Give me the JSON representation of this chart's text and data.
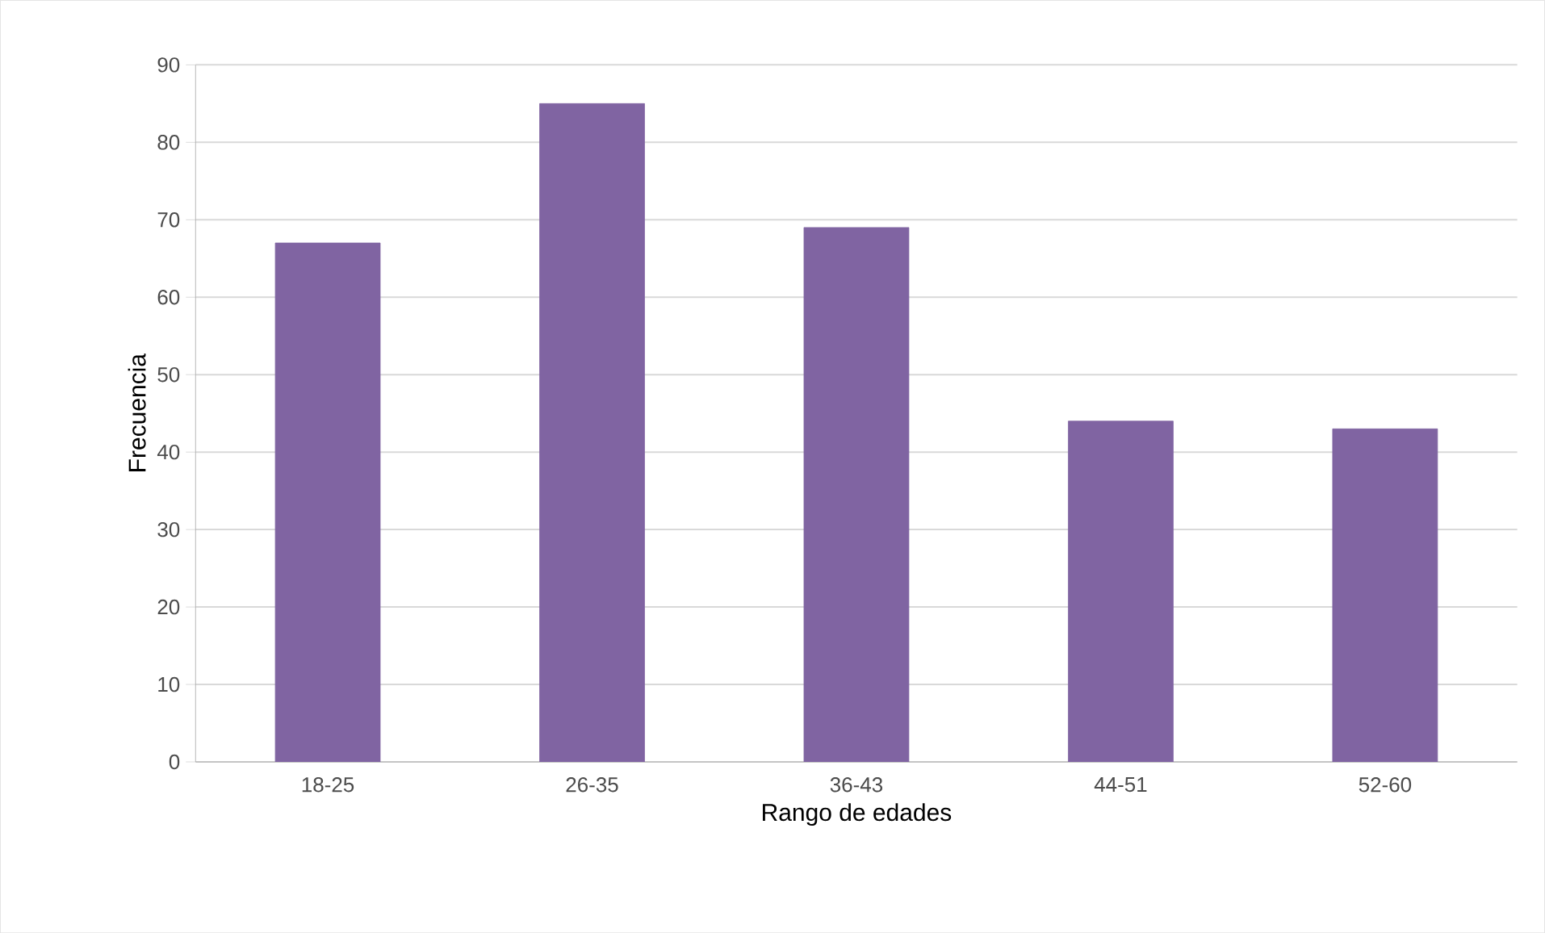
{
  "chart_data": {
    "type": "bar",
    "xlabel": "Rango de edades",
    "ylabel": "Frecuencia",
    "categories": [
      "18-25",
      "26-35",
      "36-43",
      "44-51",
      "52-60"
    ],
    "values": [
      67,
      85,
      69,
      44,
      43
    ],
    "color": "#8064a2",
    "ylim": [
      0,
      90
    ],
    "yticks": [
      0,
      10,
      20,
      30,
      40,
      50,
      60,
      70,
      80,
      90
    ],
    "grid": "y"
  }
}
